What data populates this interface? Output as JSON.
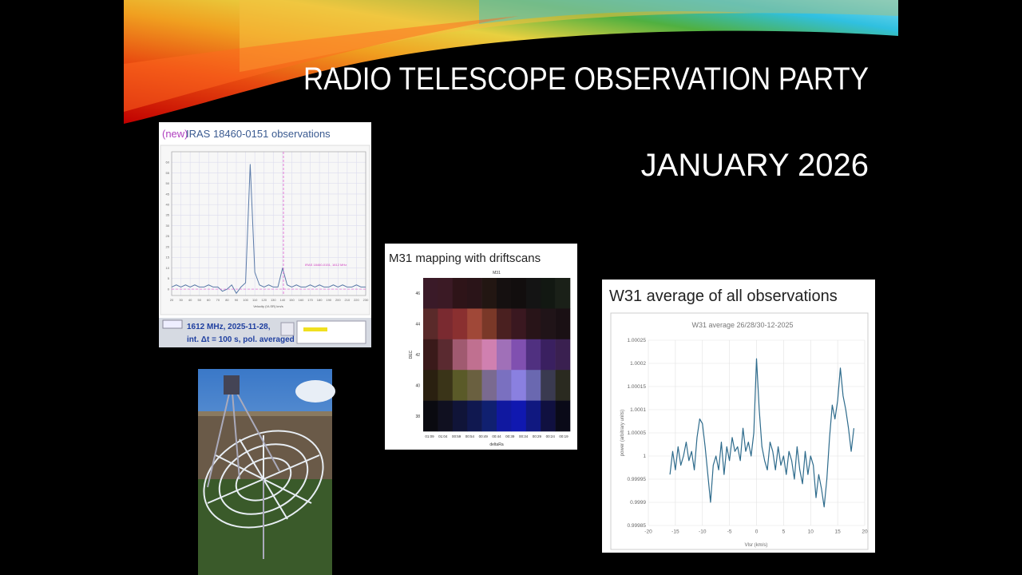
{
  "slide": {
    "title": "RADIO TELESCOPE OBSERVATION PARTY",
    "subtitle": "JANUARY 2026"
  },
  "panels": {
    "iras": {
      "caption_tag": "(new)",
      "caption": "IRAS 18460-0151 observations",
      "info": [
        "1612 MHz, 2025-11-28,",
        "int. Δt = 100 s, pol. averaged"
      ],
      "chart": {
        "type": "line",
        "annotation": "IRAS 18460-0151, 1612 MHz",
        "x_label": "Velocity (VLSR) km/s",
        "x": [
          20,
          25,
          30,
          35,
          40,
          45,
          50,
          55,
          60,
          65,
          70,
          75,
          80,
          85,
          90,
          95,
          100,
          105,
          110,
          115,
          120,
          125,
          130,
          135,
          140,
          145,
          150,
          155,
          160,
          165,
          170,
          175,
          180,
          185,
          190,
          195,
          200,
          205,
          210,
          215,
          220,
          225,
          230
        ],
        "series": [
          {
            "name": "IRAS 18460-0151",
            "color": "#5a7aa8",
            "values": [
              1,
              2,
              1,
              2,
              1,
              2,
              1,
              1,
              2,
              1,
              1,
              -1,
              0,
              2,
              -2,
              1,
              3,
              59,
              8,
              2,
              1,
              2,
              1,
              1,
              10,
              2,
              1,
              2,
              1,
              1,
              2,
              1,
              2,
              1,
              1,
              2,
              1,
              2,
              1,
              1,
              2,
              1,
              1
            ]
          }
        ],
        "xlim": [
          20,
          230
        ],
        "ylim": [
          -3,
          65
        ],
        "xticks": [
          20,
          30,
          40,
          50,
          60,
          70,
          80,
          90,
          100,
          110,
          120,
          130,
          140,
          150,
          160,
          170,
          180,
          190,
          200,
          210,
          220,
          230
        ],
        "yticks": [
          0,
          5,
          10,
          15,
          20,
          25,
          30,
          35,
          40,
          45,
          50,
          55,
          60
        ],
        "grid": true
      }
    },
    "m31": {
      "caption": "M31 mapping with driftscans",
      "chart": {
        "type": "heatmap",
        "title": "M31",
        "x_label": "deltaRa",
        "y_label": "DEC",
        "xticks": [
          "01:09",
          "01:04",
          "00:59",
          "00:54",
          "00:49",
          "00:44",
          "00:39",
          "00:34",
          "00:29",
          "00:24",
          "00:19"
        ],
        "yticks": [
          46,
          44,
          42,
          40,
          38
        ],
        "cells": [
          [
            "#3a1a28",
            "#3b1a25",
            "#2e1418",
            "#2a1418",
            "#221612",
            "#151010",
            "#120e0e",
            "#141414",
            "#121812",
            "#1a2018"
          ],
          [
            "#5a2a2a",
            "#7a2a30",
            "#8a3030",
            "#a04838",
            "#7a3828",
            "#4a2020",
            "#3a1820",
            "#281418",
            "#201418",
            "#1a1014"
          ],
          [
            "#3a1a1a",
            "#5a2a30",
            "#a05a70",
            "#c07090",
            "#d080b0",
            "#a070b8",
            "#8050b0",
            "#503080",
            "#3a2060",
            "#3a2050"
          ],
          [
            "#2a2010",
            "#3a3418",
            "#5a5a28",
            "#6a6040",
            "#7a6a90",
            "#7a70c0",
            "#8a80e0",
            "#6a68b0",
            "#3a3a50",
            "#2a2a20"
          ],
          [
            "#0a0a10",
            "#101020",
            "#101438",
            "#101850",
            "#102070",
            "#1018a0",
            "#1018b0",
            "#101880",
            "#101040",
            "#0a0a18"
          ]
        ]
      }
    },
    "w31": {
      "caption": "W31 average of all observations",
      "chart": {
        "type": "line",
        "title": "W31 average 26/28/30-12-2025",
        "x_label": "Vlsr (km/s)",
        "y_label": "power (arbitrary units)",
        "x": [
          -16,
          -15.5,
          -15,
          -14.5,
          -14,
          -13.5,
          -13,
          -12.5,
          -12,
          -11.5,
          -11,
          -10.5,
          -10,
          -9.5,
          -9,
          -8.5,
          -8,
          -7.5,
          -7,
          -6.5,
          -6,
          -5.5,
          -5,
          -4.5,
          -4,
          -3.5,
          -3,
          -2.5,
          -2,
          -1.5,
          -1,
          -0.5,
          0,
          0.5,
          1,
          1.5,
          2,
          2.5,
          3,
          3.5,
          4,
          4.5,
          5,
          5.5,
          6,
          6.5,
          7,
          7.5,
          8,
          8.5,
          9,
          9.5,
          10,
          10.5,
          11,
          11.5,
          12,
          12.5,
          13,
          13.5,
          14,
          14.5,
          15,
          15.5,
          16,
          16.5,
          17,
          17.5,
          18
        ],
        "series": [
          {
            "name": "W31 average",
            "color": "#2e6b8c",
            "values": [
              0.99996,
              1.00001,
              0.99997,
              1.00002,
              0.99998,
              1.0,
              1.00003,
              0.99999,
              1.00001,
              0.99997,
              1.00004,
              1.00008,
              1.00007,
              1.00002,
              0.99996,
              0.9999,
              0.99998,
              1.0,
              0.99997,
              1.00003,
              0.99996,
              1.00002,
              0.99999,
              1.00004,
              1.00001,
              1.00002,
              0.99999,
              1.00006,
              1.00001,
              1.00003,
              1.0,
              1.00005,
              1.00021,
              1.0001,
              1.00002,
              0.99999,
              0.99997,
              1.00003,
              1.00001,
              0.99997,
              1.00002,
              0.99998,
              1.0,
              0.99996,
              1.00001,
              0.99999,
              0.99995,
              1.00002,
              0.99997,
              0.99994,
              1.00001,
              0.99996,
              1.0,
              0.99998,
              0.99991,
              0.99996,
              0.99993,
              0.99989,
              0.99995,
              1.00004,
              1.00011,
              1.00008,
              1.00012,
              1.00019,
              1.00013,
              1.0001,
              1.00006,
              1.00001,
              1.00006
            ]
          }
        ],
        "xlim": [
          -20,
          20
        ],
        "ylim": [
          0.99985,
          1.00025
        ],
        "xticks": [
          -20,
          -15,
          -10,
          -5,
          0,
          5,
          10,
          15,
          20
        ],
        "yticks": [
          1.00025,
          1.0002,
          1.00015,
          1.0001,
          1.00005,
          1,
          0.99995,
          0.9999,
          0.99985
        ],
        "grid": true
      }
    }
  }
}
